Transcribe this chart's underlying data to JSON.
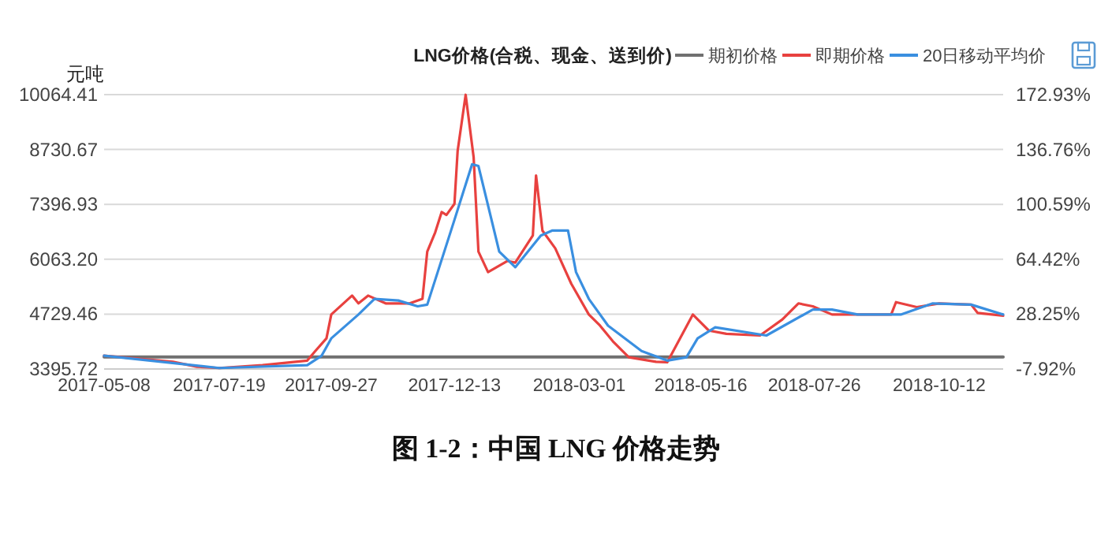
{
  "chart_data": {
    "type": "line",
    "title": "LNG价格(合税、现金、送到价)",
    "ylabel": "元吨",
    "annotations": [
      "图 1-2：中国 LNG 价格走势"
    ],
    "xlim": [
      "2017-05-08",
      "2018-11-21"
    ],
    "xticks": [
      "2017-05-08",
      "2017-07-19",
      "2017-09-27",
      "2017-12-13",
      "2018-03-01",
      "2018-05-16",
      "2018-07-26",
      "2018-10-12"
    ],
    "ylim": [
      3395.72,
      10064.41
    ],
    "yticks": [
      3395.72,
      4729.46,
      {
        "value": 6063.2,
        "label": "6063.20"
      },
      7396.93,
      8730.67,
      10064.41
    ],
    "y2lim": [
      -7.92,
      172.93
    ],
    "y2ticks": [
      {
        "value": -7.92,
        "label": "-7.92%"
      },
      {
        "value": 28.25,
        "label": "28.25%"
      },
      {
        "value": 64.42,
        "label": "64.42%"
      },
      {
        "value": 100.59,
        "label": "100.59%"
      },
      {
        "value": 136.76,
        "label": "136.76%"
      },
      {
        "value": 172.93,
        "label": "172.93%"
      }
    ],
    "grid": "y",
    "legend": "top",
    "marker": "none",
    "line_style": "solid",
    "series": [
      {
        "name": "期初价格",
        "color": "#707070",
        "x": [
          "2017-05-08",
          "2018-11-21"
        ],
        "values": [
          3690,
          3690
        ]
      },
      {
        "name": "即期价格",
        "color": "#e8413f",
        "x": [
          "2017-05-08",
          "2017-06-20",
          "2017-07-05",
          "2017-07-19",
          "2017-08-15",
          "2017-09-12",
          "2017-09-17",
          "2017-09-24",
          "2017-09-27",
          "2017-10-10",
          "2017-10-14",
          "2017-10-20",
          "2017-10-31",
          "2017-11-15",
          "2017-11-23",
          "2017-11-26",
          "2017-12-01",
          "2017-12-05",
          "2017-12-08",
          "2017-12-13",
          "2017-12-15",
          "2017-12-20",
          "2017-12-25",
          "2017-12-28",
          "2018-01-03",
          "2018-01-15",
          "2018-01-20",
          "2018-01-31",
          "2018-02-02",
          "2018-02-06",
          "2018-02-14",
          "2018-02-24",
          "2018-03-07",
          "2018-03-14",
          "2018-03-22",
          "2018-04-01",
          "2018-04-18",
          "2018-04-25",
          "2018-05-11",
          "2018-05-21",
          "2018-06-01",
          "2018-06-22",
          "2018-07-06",
          "2018-07-16",
          "2018-07-25",
          "2018-08-06",
          "2018-08-12",
          "2018-09-12",
          "2018-09-15",
          "2018-09-28",
          "2018-10-12",
          "2018-11-01",
          "2018-11-05",
          "2018-11-21"
        ],
        "values": [
          3720,
          3570,
          3450,
          3420,
          3490,
          3600,
          3830,
          4140,
          4720,
          5180,
          4990,
          5180,
          4990,
          4990,
          5100,
          6250,
          6720,
          7210,
          7140,
          7410,
          8700,
          10060,
          8540,
          6250,
          5750,
          6020,
          5980,
          6640,
          8100,
          6760,
          6330,
          5470,
          4720,
          4450,
          4070,
          3680,
          3570,
          3560,
          4720,
          4330,
          4250,
          4210,
          4600,
          4990,
          4920,
          4720,
          4720,
          4720,
          5020,
          4900,
          4990,
          4960,
          4760,
          4690
        ]
      },
      {
        "name": "20日移动平均价",
        "color": "#3a8fe0",
        "x": [
          "2017-05-08",
          "2017-07-19",
          "2017-09-12",
          "2017-09-21",
          "2017-09-27",
          "2017-10-14",
          "2017-10-24",
          "2017-11-08",
          "2017-11-20",
          "2017-11-26",
          "2017-12-13",
          "2017-12-24",
          "2017-12-28",
          "2018-01-10",
          "2018-01-20",
          "2018-02-05",
          "2018-02-12",
          "2018-02-22",
          "2018-02-27",
          "2018-03-07",
          "2018-03-19",
          "2018-04-09",
          "2018-04-25",
          "2018-05-07",
          "2018-05-14",
          "2018-05-25",
          "2018-06-26",
          "2018-07-25",
          "2018-08-06",
          "2018-08-22",
          "2018-09-18",
          "2018-10-08",
          "2018-11-01",
          "2018-11-21"
        ],
        "values": [
          3720,
          3420,
          3490,
          3720,
          4140,
          4720,
          5100,
          5060,
          4920,
          4960,
          7020,
          8370,
          8330,
          6250,
          5870,
          6640,
          6760,
          6760,
          5750,
          5100,
          4450,
          3830,
          3600,
          3680,
          4140,
          4410,
          4210,
          4840,
          4840,
          4720,
          4720,
          4990,
          4960,
          4720
        ]
      }
    ]
  }
}
